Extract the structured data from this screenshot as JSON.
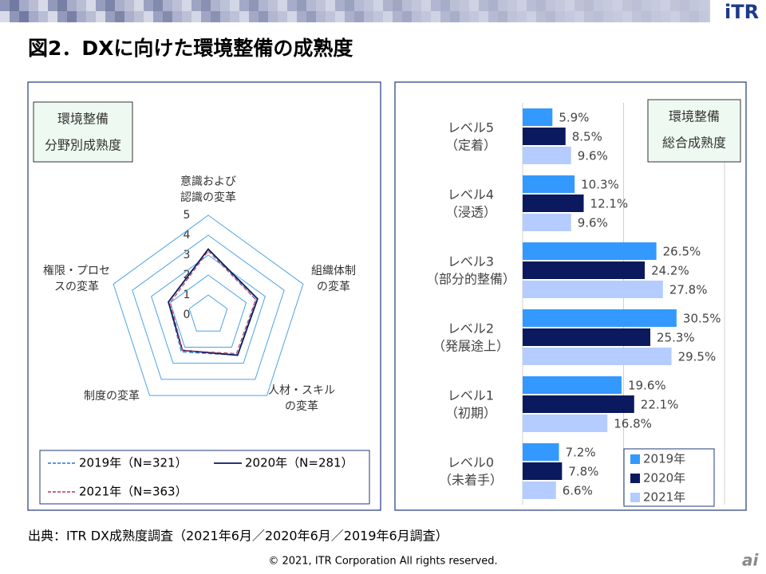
{
  "title": "図2．DXに向けた環境整備の成熟度",
  "logo": "iTR",
  "source": "出典：ITR DX成熟度調査（2021年6月／2020年6月／2019年6月調査）",
  "copyright": "© 2021, ITR Corporation  All rights reserved.",
  "corner_mark": "ai",
  "chart_data": [
    {
      "type": "radar",
      "label_box": [
        "環境整備",
        "分野別成熟度"
      ],
      "categories": [
        [
          "意識および",
          "認識の変革"
        ],
        [
          "組織体制",
          "の変革"
        ],
        [
          "人材・スキル",
          "の変革"
        ],
        [
          "制度の変革"
        ],
        [
          "権限・プロセ",
          "スの変革"
        ]
      ],
      "ylim": [
        0,
        5
      ],
      "yticks": [
        0,
        1,
        2,
        3,
        4,
        5
      ],
      "series": [
        {
          "name": "2019年（N=321）",
          "color": "#3b8fe0",
          "line_style": "dashed",
          "values": [
            3.3,
            2.5,
            2.5,
            2.3,
            2.1
          ]
        },
        {
          "name": "2020年（N=281）",
          "color": "#0b1a5e",
          "line_style": "solid",
          "values": [
            3.3,
            2.6,
            2.5,
            2.2,
            2.1
          ]
        },
        {
          "name": "2021年（N=363）",
          "color": "#c0506d",
          "line_style": "dashed",
          "values": [
            3.2,
            2.5,
            2.4,
            2.2,
            2.0
          ]
        }
      ]
    },
    {
      "type": "bar",
      "orientation": "horizontal",
      "label_box": [
        "環境整備",
        "総合成熟度"
      ],
      "categories": [
        [
          "レベル5",
          "（定着）"
        ],
        [
          "レベル4",
          "（浸透）"
        ],
        [
          "レベル3",
          "（部分的整備）"
        ],
        [
          "レベル2",
          "（発展途上）"
        ],
        [
          "レベル1",
          "（初期）"
        ],
        [
          "レベル0",
          "（未着手）"
        ]
      ],
      "xlim": [
        0,
        40
      ],
      "grid": true,
      "series": [
        {
          "name": "2019年",
          "color": "#3399ff",
          "values": [
            5.9,
            10.3,
            26.5,
            30.5,
            19.6,
            7.2
          ],
          "value_labels": [
            "5.9%",
            "10.3%",
            "26.5%",
            "30.5%",
            "19.6%",
            "7.2%"
          ]
        },
        {
          "name": "2020年",
          "color": "#0b1a5e",
          "values": [
            8.5,
            12.1,
            24.2,
            25.3,
            22.1,
            7.8
          ],
          "value_labels": [
            "8.5%",
            "12.1%",
            "24.2%",
            "25.3%",
            "22.1%",
            "7.8%"
          ]
        },
        {
          "name": "2021年",
          "color": "#b4ccff",
          "values": [
            9.6,
            9.6,
            27.8,
            29.5,
            16.8,
            6.6
          ],
          "value_labels": [
            "9.6%",
            "9.6%",
            "27.8%",
            "29.5%",
            "16.8%",
            "6.6%"
          ]
        }
      ]
    }
  ]
}
